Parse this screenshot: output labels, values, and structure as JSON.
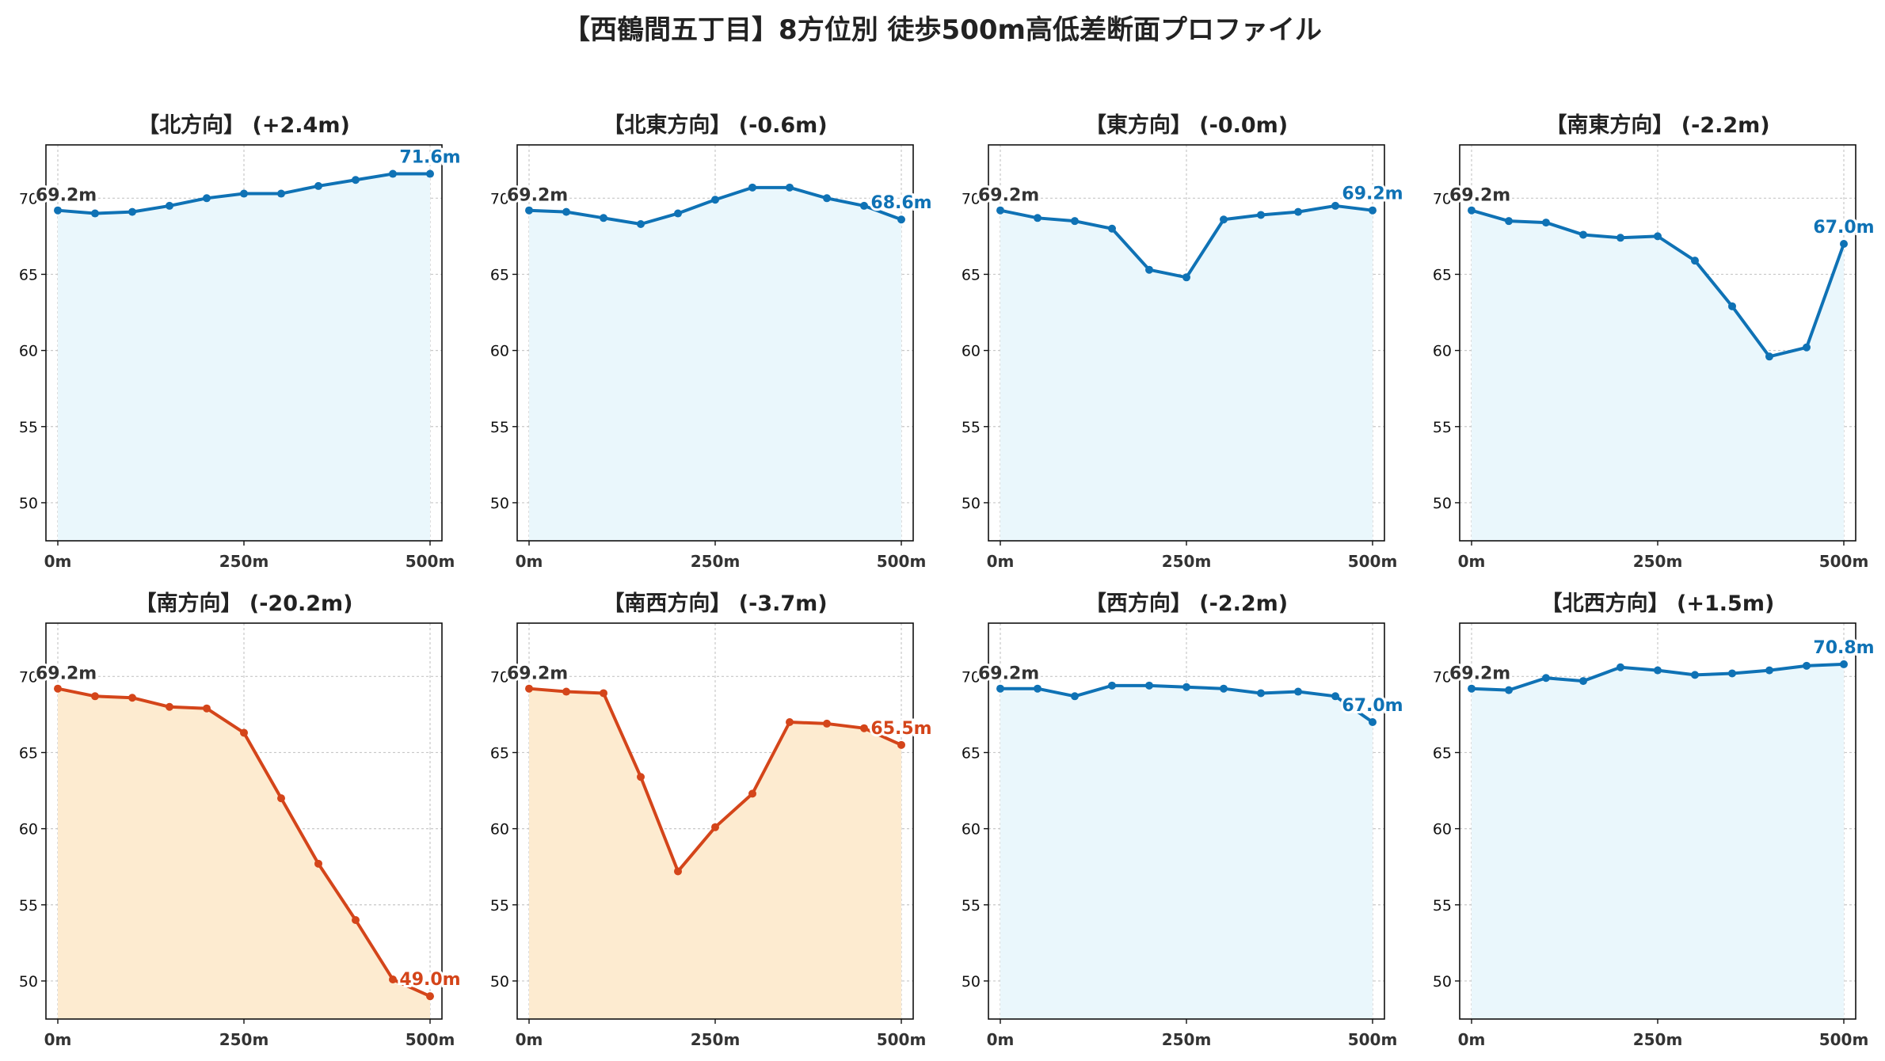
{
  "title": "【西鶴間五丁目】8方位別 徒歩500m高低差断面プロファイル",
  "colors": {
    "up": "#0f72b5",
    "up_fill": "#eaf7fc",
    "down": "#d4451a",
    "down_fill": "#fdebd0",
    "grid": "#c8c8c8"
  },
  "chart_data": [
    {
      "type": "area",
      "title": "【北方向】 (+2.4m)",
      "x": [
        0,
        50,
        100,
        150,
        200,
        250,
        300,
        350,
        400,
        450,
        500
      ],
      "values": [
        69.2,
        69.0,
        69.1,
        69.5,
        70.0,
        70.3,
        70.3,
        70.8,
        71.2,
        71.6,
        71.6
      ],
      "start_label": "69.2m",
      "end_label": "71.6m",
      "trend": "up",
      "ylim": [
        47.5,
        73.5
      ],
      "yticks": [
        50,
        55,
        60,
        65,
        70
      ],
      "xticks": [
        "0m",
        "250m",
        "500m"
      ],
      "grid": true
    },
    {
      "type": "area",
      "title": "【北東方向】 (-0.6m)",
      "x": [
        0,
        50,
        100,
        150,
        200,
        250,
        300,
        350,
        400,
        450,
        500
      ],
      "values": [
        69.2,
        69.1,
        68.7,
        68.3,
        69.0,
        69.9,
        70.7,
        70.7,
        70.0,
        69.5,
        68.6
      ],
      "start_label": "69.2m",
      "end_label": "68.6m",
      "trend": "up",
      "ylim": [
        47.5,
        73.5
      ],
      "yticks": [
        50,
        55,
        60,
        65,
        70
      ],
      "xticks": [
        "0m",
        "250m",
        "500m"
      ],
      "grid": true
    },
    {
      "type": "area",
      "title": "【東方向】 (-0.0m)",
      "x": [
        0,
        50,
        100,
        150,
        200,
        250,
        300,
        350,
        400,
        450,
        500
      ],
      "values": [
        69.2,
        68.7,
        68.5,
        68.0,
        65.3,
        64.8,
        68.6,
        68.9,
        69.1,
        69.5,
        69.2
      ],
      "start_label": "69.2m",
      "end_label": "69.2m",
      "trend": "up",
      "ylim": [
        47.5,
        73.5
      ],
      "yticks": [
        50,
        55,
        60,
        65,
        70
      ],
      "xticks": [
        "0m",
        "250m",
        "500m"
      ],
      "grid": true
    },
    {
      "type": "area",
      "title": "【南東方向】 (-2.2m)",
      "x": [
        0,
        50,
        100,
        150,
        200,
        250,
        300,
        350,
        400,
        450,
        500
      ],
      "values": [
        69.2,
        68.5,
        68.4,
        67.6,
        67.4,
        67.5,
        65.9,
        62.9,
        59.6,
        60.2,
        67.0
      ],
      "start_label": "69.2m",
      "end_label": "67.0m",
      "trend": "up",
      "ylim": [
        47.5,
        73.5
      ],
      "yticks": [
        50,
        55,
        60,
        65,
        70
      ],
      "xticks": [
        "0m",
        "250m",
        "500m"
      ],
      "grid": true
    },
    {
      "type": "area",
      "title": "【南方向】 (-20.2m)",
      "x": [
        0,
        50,
        100,
        150,
        200,
        250,
        300,
        350,
        400,
        450,
        500
      ],
      "values": [
        69.2,
        68.7,
        68.6,
        68.0,
        67.9,
        66.3,
        62.0,
        57.7,
        54.0,
        50.1,
        49.0
      ],
      "start_label": "69.2m",
      "end_label": "49.0m",
      "trend": "down",
      "ylim": [
        47.5,
        73.5
      ],
      "yticks": [
        50,
        55,
        60,
        65,
        70
      ],
      "xticks": [
        "0m",
        "250m",
        "500m"
      ],
      "grid": true
    },
    {
      "type": "area",
      "title": "【南西方向】 (-3.7m)",
      "x": [
        0,
        50,
        100,
        150,
        200,
        250,
        300,
        350,
        400,
        450,
        500
      ],
      "values": [
        69.2,
        69.0,
        68.9,
        63.4,
        57.2,
        60.1,
        62.3,
        67.0,
        66.9,
        66.6,
        65.5
      ],
      "start_label": "69.2m",
      "end_label": "65.5m",
      "trend": "down",
      "ylim": [
        47.5,
        73.5
      ],
      "yticks": [
        50,
        55,
        60,
        65,
        70
      ],
      "xticks": [
        "0m",
        "250m",
        "500m"
      ],
      "grid": true
    },
    {
      "type": "area",
      "title": "【西方向】 (-2.2m)",
      "x": [
        0,
        50,
        100,
        150,
        200,
        250,
        300,
        350,
        400,
        450,
        500
      ],
      "values": [
        69.2,
        69.2,
        68.7,
        69.4,
        69.4,
        69.3,
        69.2,
        68.9,
        69.0,
        68.7,
        67.0
      ],
      "start_label": "69.2m",
      "end_label": "67.0m",
      "trend": "up",
      "ylim": [
        47.5,
        73.5
      ],
      "yticks": [
        50,
        55,
        60,
        65,
        70
      ],
      "xticks": [
        "0m",
        "250m",
        "500m"
      ],
      "grid": true
    },
    {
      "type": "area",
      "title": "【北西方向】 (+1.5m)",
      "x": [
        0,
        50,
        100,
        150,
        200,
        250,
        300,
        350,
        400,
        450,
        500
      ],
      "values": [
        69.2,
        69.1,
        69.9,
        69.7,
        70.6,
        70.4,
        70.1,
        70.2,
        70.4,
        70.7,
        70.8
      ],
      "start_label": "69.2m",
      "end_label": "70.8m",
      "trend": "up",
      "ylim": [
        47.5,
        73.5
      ],
      "yticks": [
        50,
        55,
        60,
        65,
        70
      ],
      "xticks": [
        "0m",
        "250m",
        "500m"
      ],
      "grid": true
    }
  ]
}
